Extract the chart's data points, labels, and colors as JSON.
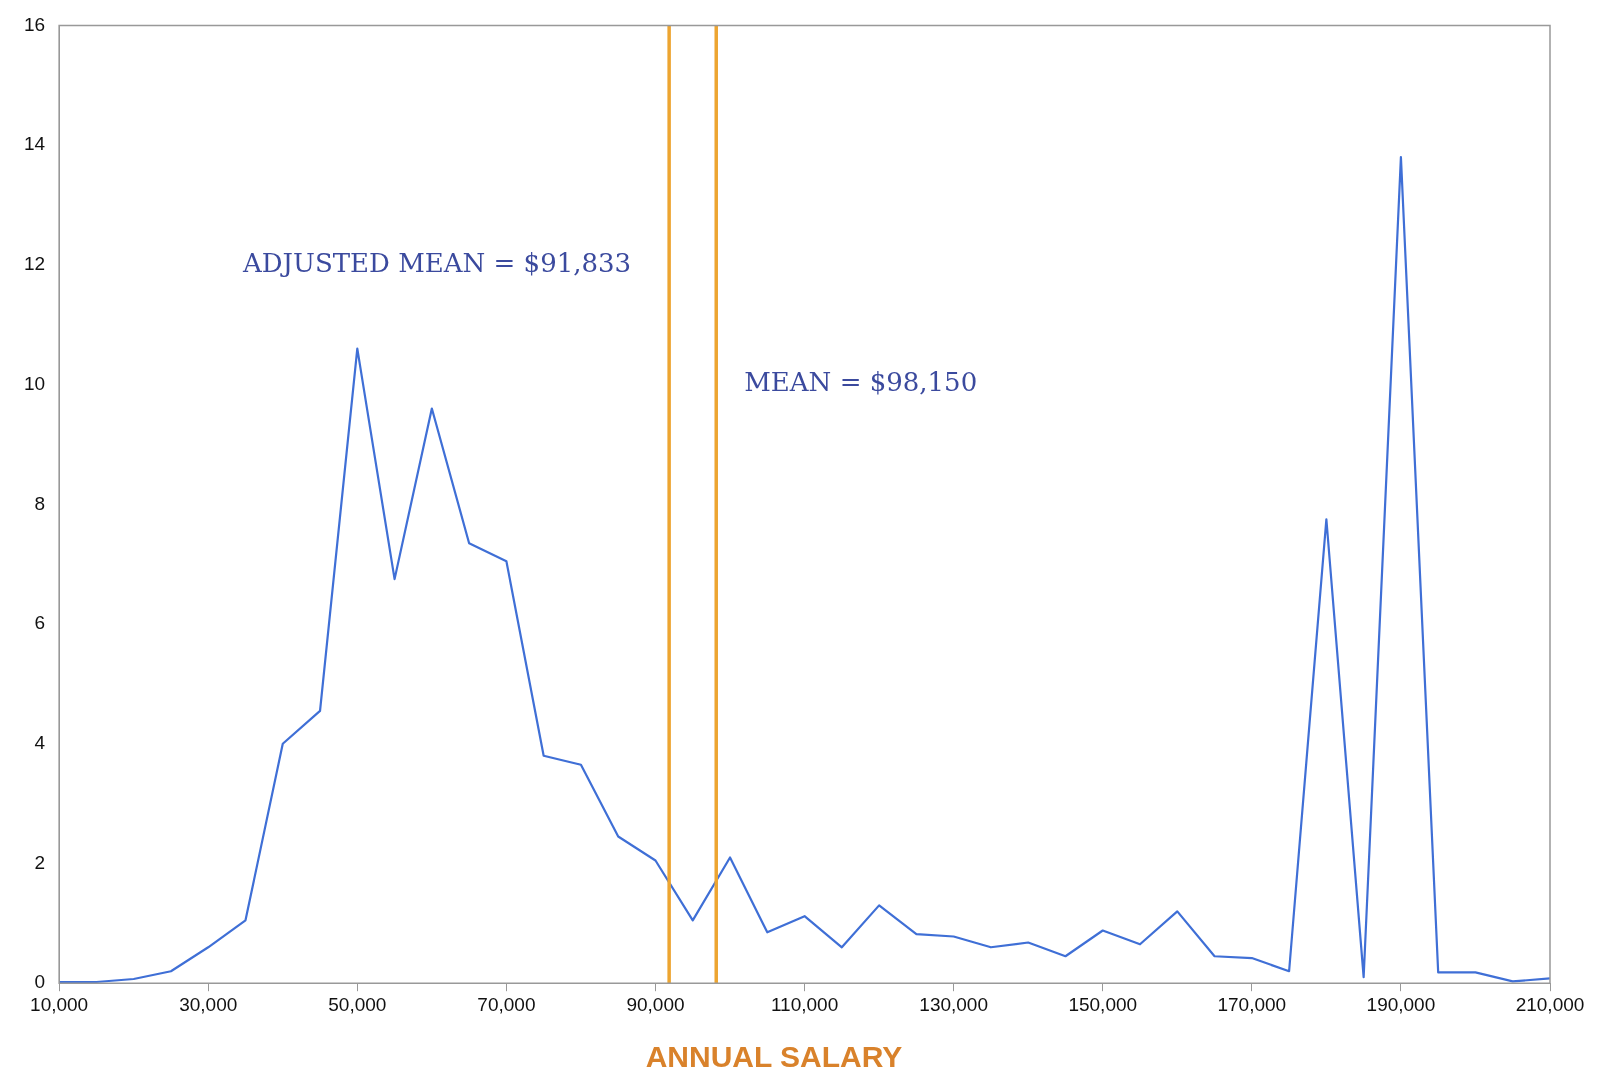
{
  "chart_data": {
    "type": "line",
    "xlabel": "ANNUAL SALARY",
    "x": [
      10000,
      15000,
      20000,
      25000,
      30000,
      35000,
      40000,
      45000,
      50000,
      55000,
      60000,
      65000,
      70000,
      75000,
      80000,
      85000,
      90000,
      95000,
      100000,
      105000,
      110000,
      115000,
      120000,
      125000,
      130000,
      135000,
      140000,
      145000,
      150000,
      155000,
      160000,
      165000,
      170000,
      175000,
      180000,
      185000,
      190000,
      195000,
      200000,
      205000,
      210000
    ],
    "series": [
      {
        "color": "#3f6fd6",
        "values": [
          0.02,
          0.02,
          0.07,
          0.2,
          0.6,
          1.05,
          4.0,
          4.55,
          10.6,
          6.75,
          9.6,
          7.35,
          7.05,
          3.8,
          3.65,
          2.45,
          2.05,
          1.05,
          2.1,
          0.85,
          1.12,
          0.6,
          1.3,
          0.82,
          0.78,
          0.6,
          0.68,
          0.45,
          0.88,
          0.65,
          1.2,
          0.45,
          0.42,
          0.2,
          7.75,
          0.1,
          13.8,
          0.18,
          0.18,
          0.03,
          0.08
        ]
      }
    ],
    "xlim": [
      10000,
      210000
    ],
    "xticks": [
      {
        "value": 10000,
        "label": "10,000"
      },
      {
        "value": 30000,
        "label": "30,000"
      },
      {
        "value": 50000,
        "label": "50,000"
      },
      {
        "value": 70000,
        "label": "70,000"
      },
      {
        "value": 90000,
        "label": "90,000"
      },
      {
        "value": 110000,
        "label": "110,000"
      },
      {
        "value": 130000,
        "label": "130,000"
      },
      {
        "value": 150000,
        "label": "150,000"
      },
      {
        "value": 170000,
        "label": "170,000"
      },
      {
        "value": 190000,
        "label": "190,000"
      },
      {
        "value": 210000,
        "label": "210,000"
      }
    ],
    "ylim": [
      0,
      16
    ],
    "yticks": [
      0,
      2,
      4,
      6,
      8,
      10,
      12,
      14,
      16
    ],
    "grid": false,
    "legend": false,
    "marker": "none",
    "line_style": "solid",
    "ref_lines": [
      {
        "axis": "x",
        "value": 91833,
        "color": "#eda531"
      },
      {
        "axis": "x",
        "value": 98150,
        "color": "#eda531"
      }
    ],
    "annotations": [
      {
        "text": "ADJUSTED MEAN = $91,833",
        "x": 91833,
        "y": 12
      },
      {
        "text": "MEAN = $98,150",
        "x": 98150,
        "y": 10
      }
    ]
  }
}
